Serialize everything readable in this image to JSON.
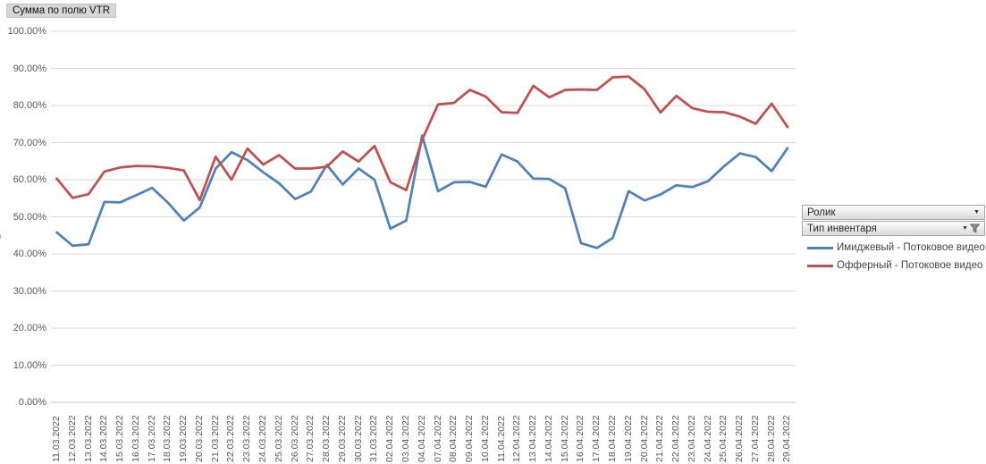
{
  "header": {
    "field_button_label": "Сумма по полю VTR"
  },
  "axis_fragment": ")",
  "filters": [
    {
      "label": "Ролик",
      "has_filter_icon": false
    },
    {
      "label": "Тип инвентаря",
      "has_filter_icon": true
    }
  ],
  "chart_data": {
    "type": "line",
    "title": "Сумма по полю VTR",
    "categories": [
      "11.03.2022",
      "12.03.2022",
      "13.03.2022",
      "14.03.2022",
      "15.03.2022",
      "16.03.2022",
      "17.03.2022",
      "18.03.2022",
      "19.03.2022",
      "20.03.2022",
      "21.03.2022",
      "22.03.2022",
      "23.03.2022",
      "24.03.2022",
      "25.03.2022",
      "26.03.2022",
      "27.03.2022",
      "28.03.2022",
      "29.03.2022",
      "30.03.2022",
      "31.03.2022",
      "02.04.2022",
      "03.04.2022",
      "04.04.2022",
      "07.04.2022",
      "08.04.2022",
      "09.04.2022",
      "10.04.2022",
      "11.04.2022",
      "12.04.2022",
      "13.04.2022",
      "14.04.2022",
      "15.04.2022",
      "16.04.2022",
      "17.04.2022",
      "18.04.2022",
      "19.04.2022",
      "20.04.2022",
      "21.04.2022",
      "22.04.2022",
      "23.04.2022",
      "24.04.2022",
      "25.04.2022",
      "26.04.2022",
      "27.04.2022",
      "28.04.2022",
      "29.04.2022"
    ],
    "series": [
      {
        "name": "Имиджевый - Потоковое видео",
        "color": "#4F81BD",
        "values": [
          45.8,
          42.2,
          42.6,
          54.0,
          53.9,
          55.8,
          57.8,
          53.8,
          49.0,
          52.5,
          63.0,
          67.4,
          65.3,
          62.0,
          59.0,
          54.8,
          56.8,
          64.0,
          58.7,
          63.0,
          60.0,
          46.8,
          49.0,
          71.9,
          56.9,
          59.3,
          59.4,
          58.1,
          66.8,
          64.9,
          60.3,
          60.2,
          57.7,
          42.9,
          41.6,
          44.3,
          56.9,
          54.4,
          56.0,
          58.5,
          58.0,
          59.6,
          63.6,
          67.1,
          66.1,
          62.3,
          68.5
        ]
      },
      {
        "name": "Офферный - Потоковое видео",
        "color": "#C0504D",
        "values": [
          60.3,
          55.1,
          56.1,
          62.2,
          63.3,
          63.7,
          63.6,
          63.2,
          62.5,
          54.5,
          66.2,
          60.0,
          68.4,
          64.1,
          66.6,
          63.0,
          63.0,
          63.5,
          67.6,
          64.9,
          69.1,
          59.3,
          57.2,
          70.8,
          80.3,
          80.7,
          84.2,
          82.4,
          78.2,
          78.0,
          85.3,
          82.2,
          84.2,
          84.3,
          84.2,
          87.6,
          87.8,
          84.4,
          78.1,
          82.6,
          79.3,
          78.3,
          78.2,
          77.0,
          75.1,
          80.5,
          74.2
        ]
      }
    ],
    "ylim": [
      0,
      100
    ],
    "y_tick_step": 10,
    "y_tick_suffix": "%",
    "grid": "horizontal",
    "legend_position": "right",
    "grid_color": "#D9D9D9",
    "axis_line_color": "#C3C3C3",
    "tick_label_color": "#595959"
  }
}
